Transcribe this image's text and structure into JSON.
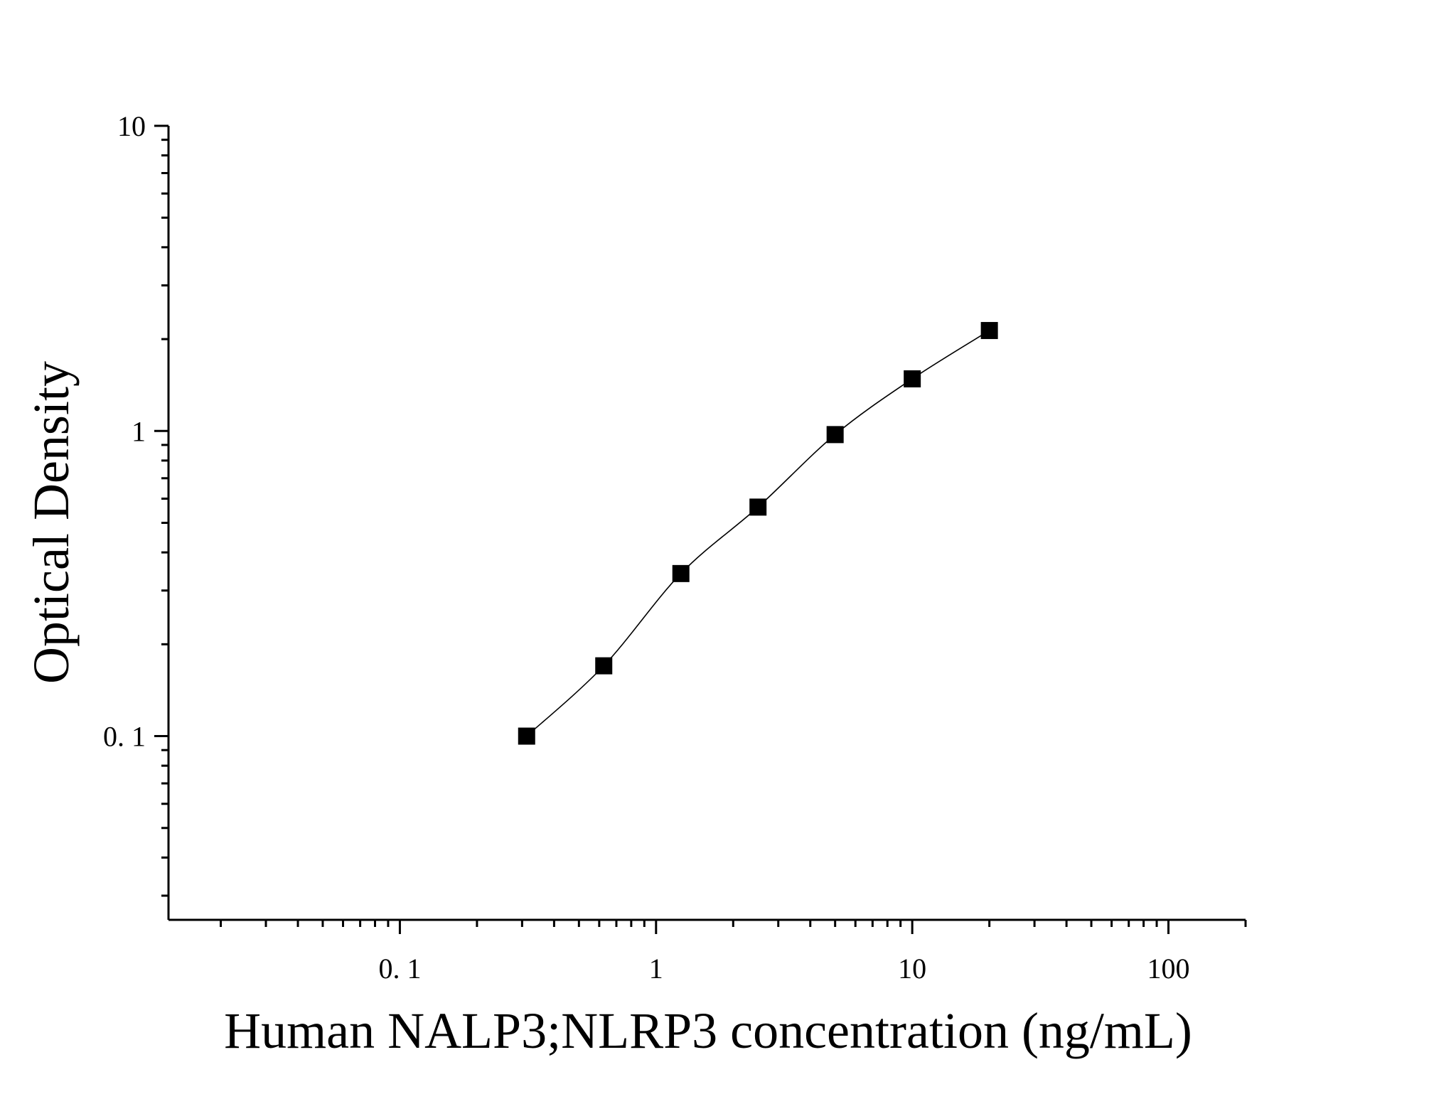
{
  "chart_data": {
    "type": "scatter",
    "title": "",
    "xlabel": "Human NALP3;NLRP3 concentration (ng/mL)",
    "ylabel": "Optical Density",
    "x_scale": "log",
    "y_scale": "log",
    "xlim": [
      0.0125,
      200
    ],
    "ylim": [
      0.025,
      10
    ],
    "x_ticks": [
      {
        "value": 0.1,
        "label": "0. 1"
      },
      {
        "value": 1,
        "label": "1"
      },
      {
        "value": 10,
        "label": "10"
      },
      {
        "value": 100,
        "label": "100"
      }
    ],
    "y_ticks": [
      {
        "value": 0.1,
        "label": "0. 1"
      },
      {
        "value": 1,
        "label": "1"
      },
      {
        "value": 10,
        "label": "10"
      }
    ],
    "grid": false,
    "legend": "none",
    "series": [
      {
        "marker": "square",
        "fit_line": true,
        "color": "#000000",
        "x": [
          0.3125,
          0.625,
          1.25,
          2.5,
          5,
          10,
          20
        ],
        "y": [
          0.1,
          0.17,
          0.341,
          0.563,
          0.973,
          1.482,
          2.134
        ]
      }
    ]
  }
}
